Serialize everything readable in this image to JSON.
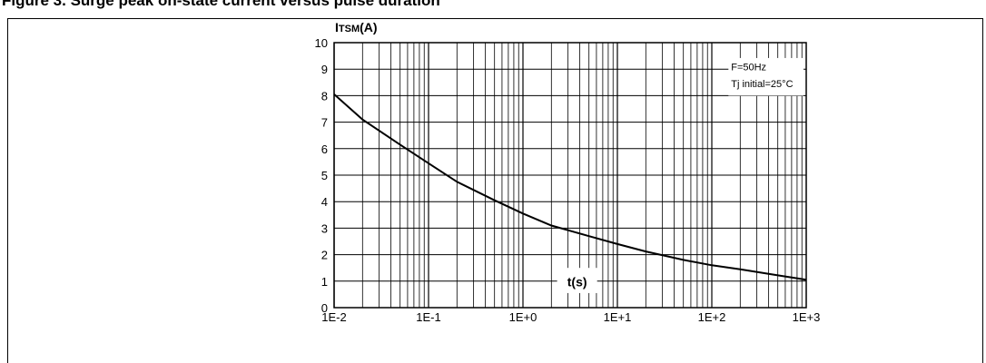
{
  "figure": {
    "heading": "Figure 3. Surge peak on-state current versus pulse duration"
  },
  "chart_data": {
    "type": "line",
    "title": "",
    "ylabel_main": "I",
    "ylabel_sub": "TSM",
    "ylabel_unit": "(A)",
    "xlabel": "t(s)",
    "x_scale": "log",
    "xlim": [
      0.01,
      1000
    ],
    "ylim": [
      0,
      10
    ],
    "grid": true,
    "x_ticks": [
      "1E-2",
      "1E-1",
      "1E+0",
      "1E+1",
      "1E+2",
      "1E+3"
    ],
    "y_ticks": [
      "0",
      "1",
      "2",
      "3",
      "4",
      "5",
      "6",
      "7",
      "8",
      "9",
      "10"
    ],
    "annotation_lines": [
      "F=50Hz",
      "Tj initial=25°C"
    ],
    "series": [
      {
        "x": [
          0.01,
          0.02,
          0.05,
          0.1,
          0.2,
          0.5,
          1,
          2,
          5,
          10,
          20,
          50,
          100,
          200,
          500,
          1000
        ],
        "y": [
          8.05,
          7.1,
          6.15,
          5.45,
          4.75,
          4.05,
          3.55,
          3.1,
          2.7,
          2.4,
          2.12,
          1.8,
          1.6,
          1.45,
          1.22,
          1.05
        ]
      }
    ]
  }
}
